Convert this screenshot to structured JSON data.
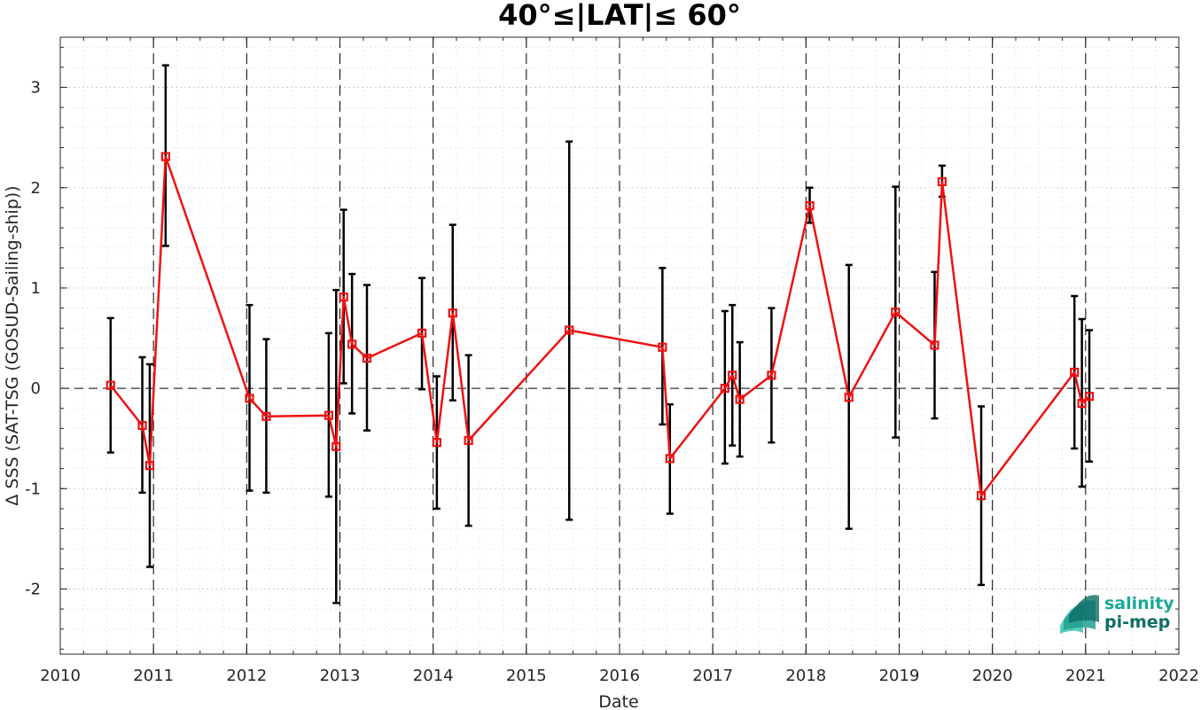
{
  "chart_data": {
    "type": "line",
    "title": "40°≤|LAT|≤ 60°",
    "xlabel": "Date",
    "ylabel": "Δ SSS (SAT-TSG (GOSUD-Sailing-ship))",
    "xlim": [
      2010,
      2022
    ],
    "ylim": [
      -2.65,
      3.5
    ],
    "x_ticks": [
      "2010",
      "2011",
      "2012",
      "2013",
      "2014",
      "2015",
      "2016",
      "2017",
      "2018",
      "2019",
      "2020",
      "2021",
      "2022"
    ],
    "y_ticks": [
      "-2",
      "-1",
      "0",
      "1",
      "2",
      "3"
    ],
    "grid": true,
    "series": [
      {
        "color": "#ee1111",
        "marker": "square",
        "points": [
          {
            "x": 2010.54,
            "y": 0.03,
            "lo": -0.64,
            "hi": 0.7
          },
          {
            "x": 2010.88,
            "y": -0.37,
            "lo": -1.04,
            "hi": 0.31
          },
          {
            "x": 2010.96,
            "y": -0.77,
            "lo": -1.78,
            "hi": 0.24
          },
          {
            "x": 2011.13,
            "y": 2.31,
            "lo": 1.42,
            "hi": 3.22
          },
          {
            "x": 2012.03,
            "y": -0.1,
            "lo": -1.02,
            "hi": 0.83
          },
          {
            "x": 2012.21,
            "y": -0.28,
            "lo": -1.04,
            "hi": 0.49
          },
          {
            "x": 2012.88,
            "y": -0.27,
            "lo": -1.08,
            "hi": 0.55
          },
          {
            "x": 2012.96,
            "y": -0.58,
            "lo": -2.14,
            "hi": 0.98
          },
          {
            "x": 2013.04,
            "y": 0.91,
            "lo": 0.05,
            "hi": 1.78
          },
          {
            "x": 2013.13,
            "y": 0.44,
            "lo": -0.25,
            "hi": 1.14
          },
          {
            "x": 2013.29,
            "y": 0.3,
            "lo": -0.42,
            "hi": 1.03
          },
          {
            "x": 2013.88,
            "y": 0.55,
            "lo": -0.01,
            "hi": 1.1
          },
          {
            "x": 2014.04,
            "y": -0.54,
            "lo": -1.2,
            "hi": 0.12
          },
          {
            "x": 2014.21,
            "y": 0.75,
            "lo": -0.12,
            "hi": 1.63
          },
          {
            "x": 2014.38,
            "y": -0.52,
            "lo": -1.37,
            "hi": 0.33
          },
          {
            "x": 2015.46,
            "y": 0.58,
            "lo": -1.31,
            "hi": 2.46
          },
          {
            "x": 2016.46,
            "y": 0.41,
            "lo": -0.36,
            "hi": 1.2
          },
          {
            "x": 2016.54,
            "y": -0.7,
            "lo": -1.25,
            "hi": -0.16
          },
          {
            "x": 2017.13,
            "y": 0.0,
            "lo": -0.75,
            "hi": 0.77
          },
          {
            "x": 2017.21,
            "y": 0.13,
            "lo": -0.57,
            "hi": 0.83
          },
          {
            "x": 2017.29,
            "y": -0.11,
            "lo": -0.68,
            "hi": 0.46
          },
          {
            "x": 2017.63,
            "y": 0.13,
            "lo": -0.54,
            "hi": 0.8
          },
          {
            "x": 2018.04,
            "y": 1.82,
            "lo": 1.65,
            "hi": 2.0
          },
          {
            "x": 2018.46,
            "y": -0.09,
            "lo": -1.4,
            "hi": 1.23
          },
          {
            "x": 2018.96,
            "y": 0.76,
            "lo": -0.49,
            "hi": 2.01
          },
          {
            "x": 2019.38,
            "y": 0.43,
            "lo": -0.3,
            "hi": 1.16
          },
          {
            "x": 2019.46,
            "y": 2.06,
            "lo": 1.91,
            "hi": 2.22
          },
          {
            "x": 2019.88,
            "y": -1.07,
            "lo": -1.96,
            "hi": -0.18
          },
          {
            "x": 2020.88,
            "y": 0.16,
            "lo": -0.6,
            "hi": 0.92
          },
          {
            "x": 2020.96,
            "y": -0.15,
            "lo": -0.98,
            "hi": 0.69
          },
          {
            "x": 2021.04,
            "y": -0.08,
            "lo": -0.73,
            "hi": 0.58
          }
        ]
      }
    ],
    "errorbar_color": "#000000"
  },
  "logo": {
    "line1": "salinity",
    "line2": "pi-mep",
    "color1": "#19a89a",
    "color2": "#0f6e65"
  }
}
